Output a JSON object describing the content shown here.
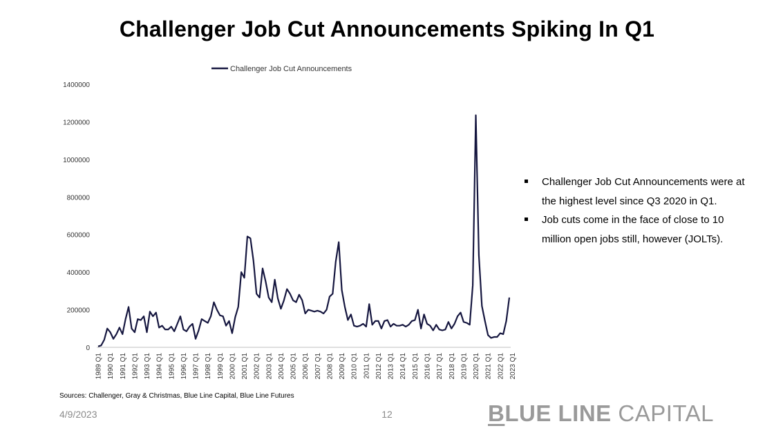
{
  "page": {
    "title": "Challenger Job Cut Announcements Spiking In Q1",
    "bullets": [
      "Challenger Job Cut Announcements were at the highest level since Q3 2020 in Q1.",
      "Job cuts come in the face of close to 10 million open jobs still, however (JOLTs)."
    ],
    "source": "Sources: Challenger, Gray & Christmas, Blue Line Capital, Blue Line Futures",
    "date": "4/9/2023",
    "page_number": "12",
    "brand_first_letter": "B",
    "brand_rest_bold": "LUE LINE",
    "brand_light": " CAPITAL"
  },
  "colors": {
    "line": "#15163f",
    "axis": "#bfbfbf",
    "brand": "#9a9a9a"
  },
  "chart_data": {
    "type": "line",
    "title": "",
    "xlabel": "",
    "ylabel": "",
    "ylim": [
      0,
      1400000
    ],
    "yticks": [
      "0",
      "200000",
      "400000",
      "600000",
      "800000",
      "1000000",
      "1200000",
      "1400000"
    ],
    "grid": false,
    "legend_position": "top-center",
    "x_tick_labels": [
      "1989 Q1",
      "1990 Q1",
      "1991 Q1",
      "1992 Q1",
      "1993 Q1",
      "1994 Q1",
      "1995 Q1",
      "1996 Q1",
      "1997 Q1",
      "1998 Q1",
      "1999 Q1",
      "2000 Q1",
      "2001 Q1",
      "2002 Q1",
      "2003 Q1",
      "2004 Q1",
      "2005 Q1",
      "2006 Q1",
      "2007 Q1",
      "2008 Q1",
      "2009 Q1",
      "2010 Q1",
      "2011 Q1",
      "2012 Q1",
      "2013 Q1",
      "2014 Q1",
      "2015 Q1",
      "2016 Q1",
      "2017 Q1",
      "2018 Q1",
      "2019 Q1",
      "2020 Q1",
      "2021 Q1",
      "2022 Q1",
      "2023 Q1"
    ],
    "series": [
      {
        "name": "Challenger Job Cut Announcements",
        "color": "#15163f",
        "values": [
          5000,
          10000,
          40000,
          100000,
          80000,
          45000,
          70000,
          105000,
          70000,
          150000,
          215000,
          100000,
          80000,
          150000,
          145000,
          165000,
          80000,
          190000,
          165000,
          185000,
          105000,
          115000,
          95000,
          95000,
          110000,
          85000,
          125000,
          165000,
          95000,
          85000,
          110000,
          125000,
          45000,
          90000,
          150000,
          140000,
          130000,
          165000,
          240000,
          200000,
          170000,
          165000,
          115000,
          140000,
          75000,
          160000,
          215000,
          400000,
          370000,
          590000,
          580000,
          460000,
          285000,
          265000,
          420000,
          350000,
          265000,
          240000,
          360000,
          260000,
          205000,
          250000,
          310000,
          285000,
          250000,
          240000,
          280000,
          250000,
          180000,
          200000,
          195000,
          190000,
          195000,
          190000,
          180000,
          200000,
          270000,
          285000,
          455000,
          560000,
          305000,
          215000,
          145000,
          175000,
          115000,
          110000,
          115000,
          125000,
          110000,
          230000,
          120000,
          140000,
          140000,
          100000,
          140000,
          145000,
          110000,
          125000,
          115000,
          115000,
          120000,
          110000,
          120000,
          140000,
          145000,
          200000,
          100000,
          175000,
          125000,
          115000,
          90000,
          120000,
          95000,
          90000,
          95000,
          135000,
          100000,
          125000,
          165000,
          185000,
          135000,
          130000,
          120000,
          330000,
          1235000,
          490000,
          220000,
          140000,
          65000,
          50000,
          55000,
          55000,
          75000,
          70000,
          140000,
          265000
        ]
      }
    ]
  }
}
